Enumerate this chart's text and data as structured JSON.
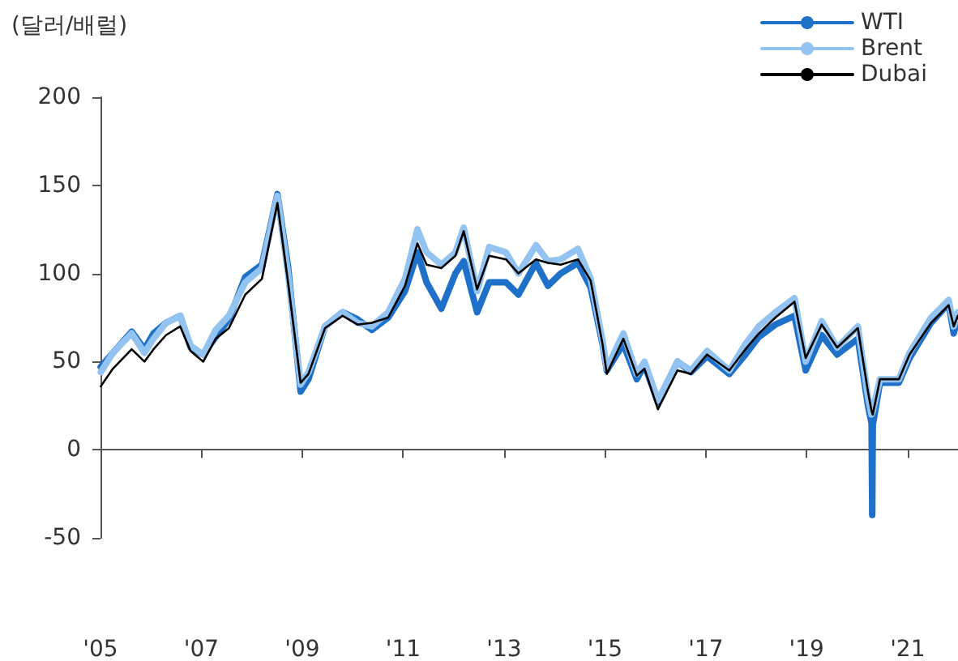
{
  "chart_data": {
    "type": "line",
    "ylabel": "(달러/배럴)",
    "x": [
      "2005-01-03",
      "2005-04-01",
      "2005-08-15",
      "2005-11-15",
      "2006-01-20",
      "2006-04-20",
      "2006-08-01",
      "2006-10-15",
      "2007-01-15",
      "2007-04-15",
      "2007-07-20",
      "2007-11-15",
      "2008-03-15",
      "2008-07-05",
      "2008-09-20",
      "2008-12-20",
      "2009-02-15",
      "2009-06-15",
      "2009-10-20",
      "2010-02-05",
      "2010-05-20",
      "2010-09-15",
      "2011-01-15",
      "2011-04-15",
      "2011-06-20",
      "2011-10-05",
      "2012-01-15",
      "2012-03-15",
      "2012-06-20",
      "2012-09-15",
      "2013-01-15",
      "2013-04-15",
      "2013-08-20",
      "2013-11-15",
      "2014-02-15",
      "2014-06-20",
      "2014-09-20",
      "2014-12-15",
      "2015-01-15",
      "2015-05-15",
      "2015-08-20",
      "2015-10-15",
      "2016-01-20",
      "2016-06-10",
      "2016-09-15",
      "2017-01-10",
      "2017-06-20",
      "2017-10-15",
      "2018-01-20",
      "2018-05-20",
      "2018-10-05",
      "2018-12-25",
      "2019-04-20",
      "2019-08-10",
      "2020-01-07",
      "2020-03-20",
      "2020-04-15",
      "2020-04-20",
      "2020-04-24",
      "2020-06-15",
      "2020-10-30",
      "2021-01-15",
      "2021-06-20",
      "2021-10-25",
      "2021-12-01",
      "2021-12-31"
    ],
    "series": [
      {
        "name": "WTI",
        "color": "#1f70c8",
        "values": [
          47,
          55,
          67,
          57,
          66,
          72,
          76,
          58,
          54,
          64,
          74,
          98,
          105,
          145,
          104,
          33,
          40,
          70,
          78,
          74,
          68,
          75,
          90,
          112,
          95,
          80,
          100,
          107,
          78,
          95,
          95,
          88,
          106,
          93,
          100,
          106,
          92,
          60,
          45,
          60,
          40,
          48,
          27,
          50,
          44,
          53,
          43,
          54,
          64,
          71,
          76,
          45,
          65,
          54,
          63,
          25,
          15,
          -37,
          14,
          38,
          38,
          52,
          72,
          83,
          66,
          75
        ]
      },
      {
        "name": "Brent",
        "color": "#93c3f0",
        "values": [
          44,
          55,
          66,
          55,
          63,
          72,
          76,
          59,
          54,
          68,
          76,
          95,
          103,
          144,
          100,
          37,
          44,
          70,
          78,
          72,
          70,
          78,
          97,
          125,
          112,
          105,
          112,
          126,
          90,
          115,
          112,
          100,
          116,
          107,
          108,
          114,
          97,
          62,
          46,
          66,
          43,
          50,
          28,
          50,
          45,
          56,
          45,
          60,
          70,
          78,
          86,
          50,
          73,
          58,
          70,
          30,
          20,
          20,
          22,
          40,
          40,
          55,
          75,
          85,
          70,
          78
        ]
      },
      {
        "name": "Dubai",
        "color": "#000000",
        "values": [
          36,
          46,
          57,
          50,
          57,
          65,
          70,
          56,
          50,
          63,
          69,
          88,
          97,
          140,
          95,
          38,
          43,
          69,
          76,
          71,
          72,
          75,
          93,
          117,
          105,
          103,
          110,
          124,
          91,
          110,
          108,
          100,
          108,
          106,
          105,
          108,
          96,
          60,
          43,
          63,
          42,
          46,
          23,
          45,
          43,
          54,
          45,
          57,
          66,
          75,
          84,
          52,
          71,
          58,
          69,
          33,
          22,
          21,
          20,
          40,
          40,
          54,
          72,
          82,
          70,
          76
        ]
      }
    ],
    "xlim": [
      "2005-01-01",
      "2022-01-01"
    ],
    "xticks": [
      {
        "value": "2005-01-01",
        "label": "'05"
      },
      {
        "value": "2007-01-01",
        "label": "'07"
      },
      {
        "value": "2009-01-01",
        "label": "'09"
      },
      {
        "value": "2011-01-01",
        "label": "'11"
      },
      {
        "value": "2013-01-01",
        "label": "'13"
      },
      {
        "value": "2015-01-01",
        "label": "'15"
      },
      {
        "value": "2017-01-01",
        "label": "'17"
      },
      {
        "value": "2019-01-01",
        "label": "'19"
      },
      {
        "value": "2021-01-01",
        "label": "'21"
      }
    ],
    "ylim": [
      -50,
      200
    ],
    "yticks": [
      -50,
      0,
      50,
      100,
      150,
      200
    ],
    "legend": "top right",
    "marker": "none",
    "line_style": "solid"
  }
}
